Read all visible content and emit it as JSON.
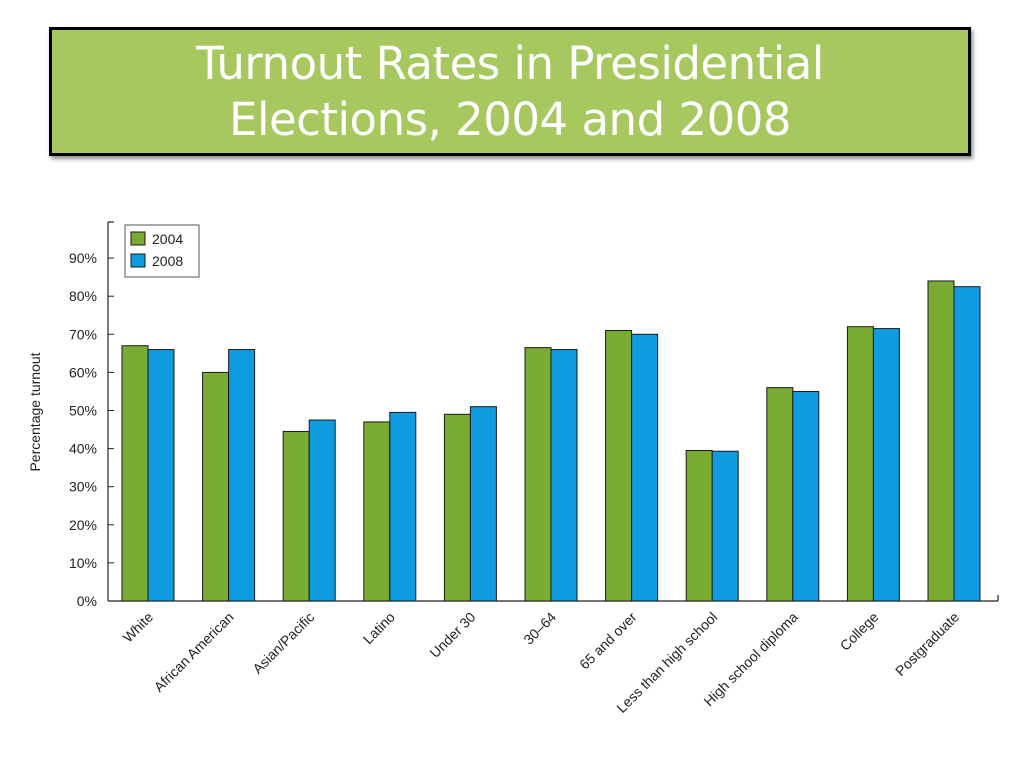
{
  "slide": {
    "title": "Turnout Rates in Presidential Elections, 2004 and 2008"
  },
  "chart_data": {
    "type": "bar",
    "title": "",
    "xlabel": "",
    "ylabel": "Percentage turnout",
    "ylim": [
      0,
      100
    ],
    "yticks": [
      "0%",
      "10%",
      "20%",
      "30%",
      "40%",
      "50%",
      "60%",
      "70%",
      "80%",
      "90%"
    ],
    "categories": [
      "White",
      "African American",
      "Asian/Pacific",
      "Latino",
      "Under 30",
      "30–64",
      "65 and over",
      "Less than high school",
      "High school diploma",
      "College",
      "Postgraduate"
    ],
    "series": [
      {
        "name": "2004",
        "color": "#7aab32",
        "values": [
          67,
          60,
          44.5,
          47,
          49,
          66.5,
          71,
          39.5,
          56,
          72,
          84
        ]
      },
      {
        "name": "2008",
        "color": "#0f9be0",
        "values": [
          66,
          66,
          47.5,
          49.5,
          51,
          66,
          70,
          39.3,
          55,
          71.5,
          82.5
        ]
      }
    ],
    "legend": {
      "position": "top-left"
    },
    "grid": false
  }
}
